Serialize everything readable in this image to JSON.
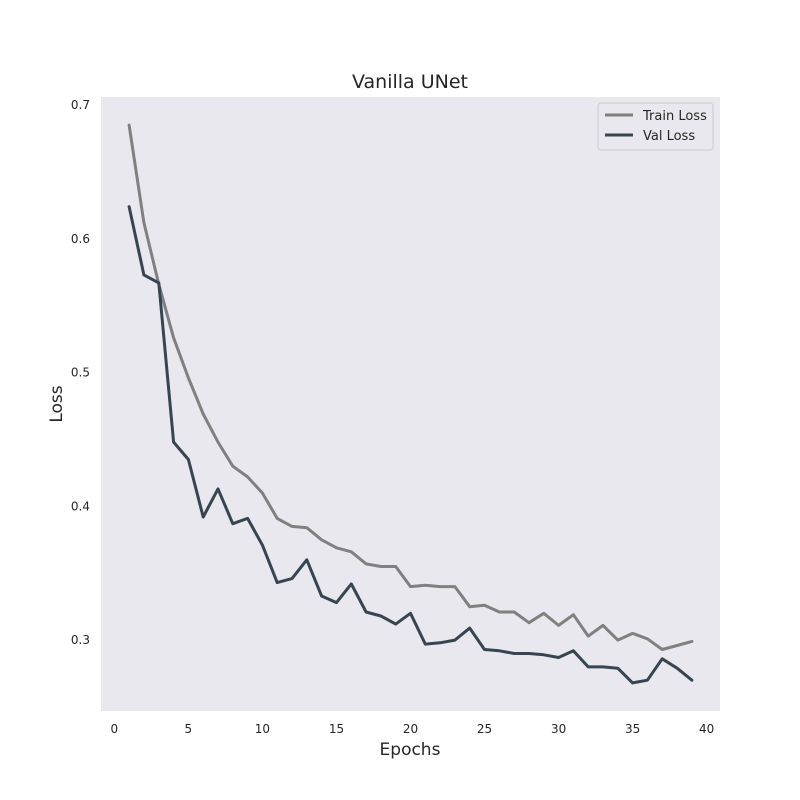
{
  "chart_data": {
    "type": "line",
    "title": "Vanilla UNet",
    "xlabel": "Epochs",
    "ylabel": "Loss",
    "xlim": [
      -0.9,
      40.9
    ],
    "ylim": [
      0.247,
      0.706
    ],
    "xticks": [
      0,
      5,
      10,
      15,
      20,
      25,
      30,
      35,
      40
    ],
    "yticks": [
      0.3,
      0.4,
      0.5,
      0.6,
      0.7
    ],
    "grid": false,
    "legend_position": "top-right",
    "x": [
      1,
      2,
      3,
      4,
      5,
      6,
      7,
      8,
      9,
      10,
      11,
      12,
      13,
      14,
      15,
      16,
      17,
      18,
      19,
      20,
      21,
      22,
      23,
      24,
      25,
      26,
      27,
      28,
      29,
      30,
      31,
      32,
      33,
      34,
      35,
      36,
      37,
      38,
      39
    ],
    "series": [
      {
        "name": "Train Loss",
        "color": "#808080",
        "values": [
          0.685,
          0.612,
          0.566,
          0.526,
          0.496,
          0.469,
          0.448,
          0.43,
          0.422,
          0.41,
          0.391,
          0.385,
          0.384,
          0.375,
          0.369,
          0.366,
          0.357,
          0.355,
          0.355,
          0.34,
          0.341,
          0.34,
          0.34,
          0.325,
          0.326,
          0.321,
          0.321,
          0.313,
          0.32,
          0.311,
          0.319,
          0.303,
          0.311,
          0.3,
          0.305,
          0.301,
          0.293,
          0.296,
          0.299
        ]
      },
      {
        "name": "Val Loss",
        "color": "#36454f",
        "values": [
          0.624,
          0.573,
          0.567,
          0.448,
          0.435,
          0.392,
          0.413,
          0.387,
          0.391,
          0.371,
          0.343,
          0.346,
          0.36,
          0.333,
          0.328,
          0.342,
          0.321,
          0.318,
          0.312,
          0.32,
          0.297,
          0.298,
          0.3,
          0.309,
          0.293,
          0.292,
          0.29,
          0.29,
          0.289,
          0.287,
          0.292,
          0.28,
          0.28,
          0.279,
          0.268,
          0.27,
          0.286,
          0.279,
          0.27
        ]
      }
    ]
  }
}
